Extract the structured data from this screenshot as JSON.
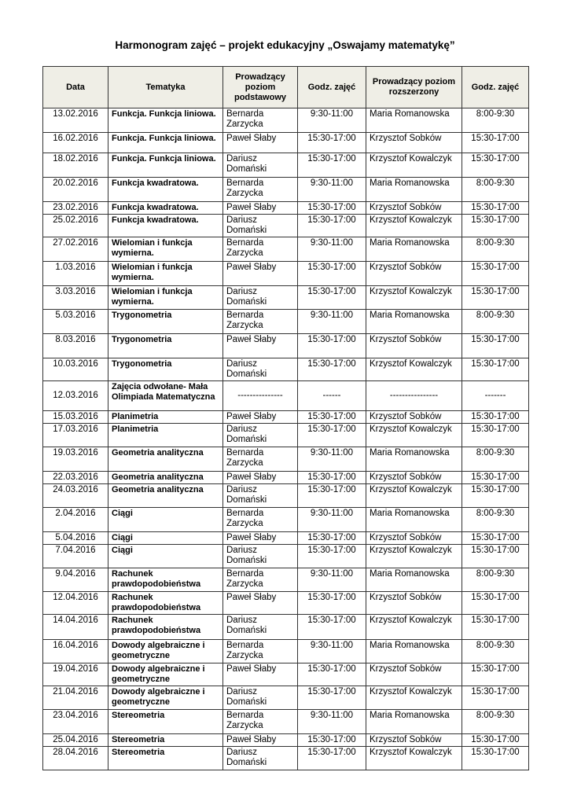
{
  "title": "Harmonogram zajęć – projekt edukacyjny „Oswajamy matematykę”",
  "columns": [
    "Data",
    "Tematyka",
    "Prowadzący poziom podstawowy",
    "Godz. zajęć",
    "Prowadzący poziom rozszerzony",
    "Godz. zajęć"
  ],
  "rows": [
    [
      "13.02.2016",
      "Funkcja. Funkcja liniowa.",
      "Bernarda Zarzycka",
      "9:30-11:00",
      "Maria Romanowska",
      "8:00-9:30"
    ],
    [
      "16.02.2016",
      "Funkcja. Funkcja liniowa.",
      "Paweł Słaby",
      "15:30-17:00",
      "Krzysztof Sobków",
      "15:30-17:00"
    ],
    [
      "18.02.2016",
      "Funkcja. Funkcja liniowa.",
      "Dariusz Domański",
      "15:30-17:00",
      "Krzysztof Kowalczyk",
      "15:30-17:00"
    ],
    [
      "20.02.2016",
      "Funkcja kwadratowa.",
      "Bernarda Zarzycka",
      "9:30-11:00",
      "Maria Romanowska",
      "8:00-9:30"
    ],
    [
      "23.02.2016",
      "Funkcja kwadratowa.",
      "Paweł Słaby",
      "15:30-17:00",
      "Krzysztof Sobków",
      "15:30-17:00"
    ],
    [
      "25.02.2016",
      "Funkcja kwadratowa.",
      "Dariusz Domański",
      "15:30-17:00",
      "Krzysztof Kowalczyk",
      "15:30-17:00"
    ],
    [
      "27.02.2016",
      "Wielomian i funkcja wymierna.",
      "Bernarda Zarzycka",
      "9:30-11:00",
      "Maria Romanowska",
      "8:00-9:30"
    ],
    [
      "1.03.2016",
      "Wielomian i funkcja wymierna.",
      "Paweł Słaby",
      "15:30-17:00",
      "Krzysztof Sobków",
      "15:30-17:00"
    ],
    [
      "3.03.2016",
      "Wielomian i funkcja wymierna.",
      "Dariusz Domański",
      "15:30-17:00",
      "Krzysztof Kowalczyk",
      "15:30-17:00"
    ],
    [
      "5.03.2016",
      "Trygonometria",
      "Bernarda Zarzycka",
      "9:30-11:00",
      "Maria Romanowska",
      "8:00-9:30"
    ],
    [
      "8.03.2016",
      "Trygonometria",
      "Paweł Słaby",
      "15:30-17:00",
      "Krzysztof Sobków",
      "15:30-17:00"
    ],
    [
      "10.03.2016",
      "Trygonometria",
      "Dariusz Domański",
      "15:30-17:00",
      "Krzysztof Kowalczyk",
      "15:30-17:00"
    ],
    [
      "12.03.2016",
      "Zajęcia odwołane- Mała Olimpiada Matematyczna",
      "---------------",
      "------",
      "----------------",
      "-------"
    ],
    [
      "15.03.2016",
      "Planimetria",
      "Paweł Słaby",
      "15:30-17:00",
      "Krzysztof Sobków",
      "15:30-17:00"
    ],
    [
      "17.03.2016",
      "Planimetria",
      "Dariusz Domański",
      "15:30-17:00",
      "Krzysztof Kowalczyk",
      "15:30-17:00"
    ],
    [
      "19.03.2016",
      "Geometria analityczna",
      "Bernarda Zarzycka",
      "9:30-11:00",
      "Maria Romanowska",
      "8:00-9:30"
    ],
    [
      "22.03.2016",
      "Geometria analityczna",
      "Paweł Słaby",
      "15:30-17:00",
      "Krzysztof Sobków",
      "15:30-17:00"
    ],
    [
      "24.03.2016",
      "Geometria analityczna",
      "Dariusz Domański",
      "15:30-17:00",
      "Krzysztof Kowalczyk",
      "15:30-17:00"
    ],
    [
      "2.04.2016",
      "Ciągi",
      "Bernarda Zarzycka",
      "9:30-11:00",
      "Maria Romanowska",
      "8:00-9:30"
    ],
    [
      "5.04.2016",
      "Ciągi",
      "Paweł Słaby",
      "15:30-17:00",
      "Krzysztof Sobków",
      "15:30-17:00"
    ],
    [
      "7.04.2016",
      "Ciągi",
      "Dariusz Domański",
      "15:30-17:00",
      "Krzysztof Kowalczyk",
      "15:30-17:00"
    ],
    [
      "9.04.2016",
      "Rachunek prawdopodobieństwa",
      "Bernarda Zarzycka",
      "9:30-11:00",
      "Maria Romanowska",
      "8:00-9:30"
    ],
    [
      "12.04.2016",
      "Rachunek prawdopodobieństwa",
      "Paweł Słaby",
      "15:30-17:00",
      "Krzysztof Sobków",
      "15:30-17:00"
    ],
    [
      "14.04.2016",
      "Rachunek prawdopodobieństwa",
      "Dariusz Domański",
      "15:30-17:00",
      "Krzysztof Kowalczyk",
      "15:30-17:00"
    ],
    [
      "16.04.2016",
      "Dowody algebraiczne i geometryczne",
      "Bernarda Zarzycka",
      "9:30-11:00",
      "Maria Romanowska",
      "8:00-9:30"
    ],
    [
      "19.04.2016",
      "Dowody algebraiczne i geometryczne",
      "Paweł Słaby",
      "15:30-17:00",
      "Krzysztof Sobków",
      "15:30-17:00"
    ],
    [
      "21.04.2016",
      "Dowody algebraiczne i geometryczne",
      "Dariusz Domański",
      "15:30-17:00",
      "Krzysztof Kowalczyk",
      "15:30-17:00"
    ],
    [
      "23.04.2016",
      "Stereometria",
      "Bernarda Zarzycka",
      "9:30-11:00",
      "Maria Romanowska",
      "8:00-9:30"
    ],
    [
      "25.04.2016",
      "Stereometria",
      "Paweł Słaby",
      "15:30-17:00",
      "Krzysztof Sobków",
      "15:30-17:00"
    ],
    [
      "28.04.2016",
      "Stereometria",
      "Dariusz Domański",
      "15:30-17:00",
      "Krzysztof Kowalczyk",
      "15:30-17:00"
    ]
  ]
}
